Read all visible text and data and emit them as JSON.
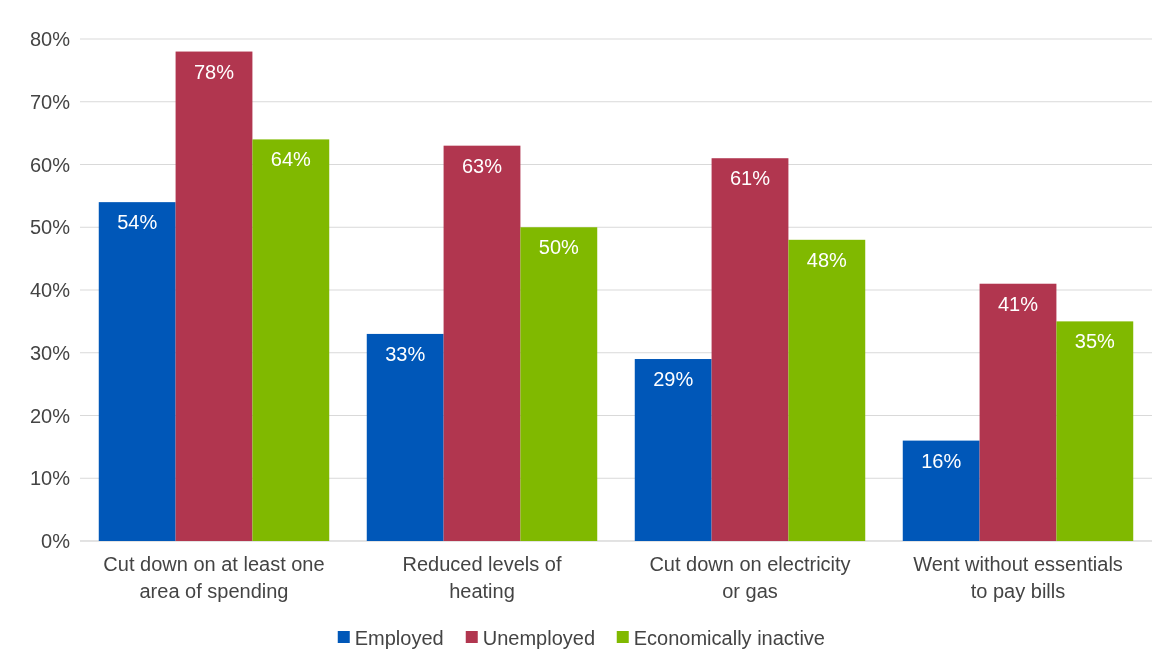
{
  "chart_data": {
    "type": "bar",
    "categories": [
      "Cut down on at least one area of spending",
      "Reduced levels of heating",
      "Cut down on electricity or gas",
      "Went without essentials to pay bills"
    ],
    "series": [
      {
        "name": "Employed",
        "color": "#0057b8",
        "values": [
          54,
          33,
          29,
          16
        ],
        "value_labels": [
          "54%",
          "33%",
          "29%",
          "16%"
        ]
      },
      {
        "name": "Unemployed",
        "color": "#b1364f",
        "values": [
          78,
          63,
          61,
          41
        ],
        "value_labels": [
          "78%",
          "63%",
          "61%",
          "41%"
        ]
      },
      {
        "name": "Economically inactive",
        "color": "#80b900",
        "values": [
          64,
          50,
          48,
          35
        ],
        "value_labels": [
          "64%",
          "50%",
          "48%",
          "35%"
        ]
      }
    ],
    "ylim": [
      0,
      80
    ],
    "yticks": [
      {
        "value": 0,
        "label": "0%"
      },
      {
        "value": 10,
        "label": "10%"
      },
      {
        "value": 20,
        "label": "20%"
      },
      {
        "value": 30,
        "label": "30%"
      },
      {
        "value": 40,
        "label": "40%"
      },
      {
        "value": 50,
        "label": "50%"
      },
      {
        "value": 60,
        "label": "60%"
      },
      {
        "value": 70,
        "label": "70%"
      },
      {
        "value": 80,
        "label": "80%"
      }
    ],
    "grid": "y",
    "legend": "bottom"
  }
}
